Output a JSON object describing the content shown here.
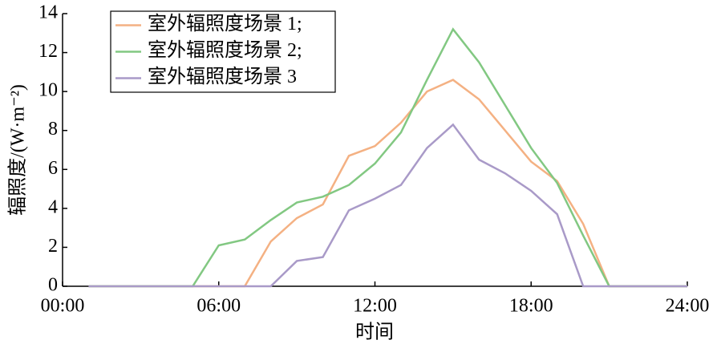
{
  "chart_data": {
    "type": "line",
    "x_label": "时间",
    "y_label": "辐照度/(W·m⁻²)",
    "x": [
      1,
      2,
      3,
      4,
      5,
      6,
      7,
      8,
      9,
      10,
      11,
      12,
      13,
      14,
      15,
      16,
      17,
      18,
      19,
      20,
      21,
      22,
      23,
      24
    ],
    "series": [
      {
        "name": "室外辐照度场景 1;",
        "color": "#f4b183",
        "values": [
          0,
          0,
          0,
          0,
          0,
          0,
          0,
          2.3,
          3.5,
          4.2,
          6.7,
          7.2,
          8.4,
          10.0,
          10.6,
          9.6,
          8.0,
          6.4,
          5.4,
          3.2,
          0,
          0,
          0,
          0
        ]
      },
      {
        "name": "室外辐照度场景 2;",
        "color": "#82c882",
        "values": [
          0,
          0,
          0,
          0,
          0,
          2.1,
          2.4,
          3.4,
          4.3,
          4.6,
          5.2,
          6.3,
          7.9,
          10.6,
          13.2,
          11.5,
          9.3,
          7.1,
          5.3,
          2.6,
          0,
          0,
          0,
          0
        ]
      },
      {
        "name": "室外辐照度场景 3",
        "color": "#a99ac8",
        "values": [
          0,
          0,
          0,
          0,
          0,
          0,
          0,
          0,
          1.3,
          1.5,
          3.9,
          4.5,
          5.2,
          7.1,
          8.3,
          6.5,
          5.8,
          4.9,
          3.7,
          0,
          0,
          0,
          0,
          0
        ]
      }
    ],
    "xlim": [
      0,
      24
    ],
    "xticks": [
      {
        "value": 0,
        "label": "00:00"
      },
      {
        "value": 6,
        "label": "06:00"
      },
      {
        "value": 12,
        "label": "12:00"
      },
      {
        "value": 18,
        "label": "18:00"
      },
      {
        "value": 24,
        "label": "24:00"
      }
    ],
    "ylim": [
      0,
      14
    ],
    "yticks": [
      0,
      2,
      4,
      6,
      8,
      10,
      12,
      14
    ],
    "legend": "upper-left",
    "grid": false
  }
}
